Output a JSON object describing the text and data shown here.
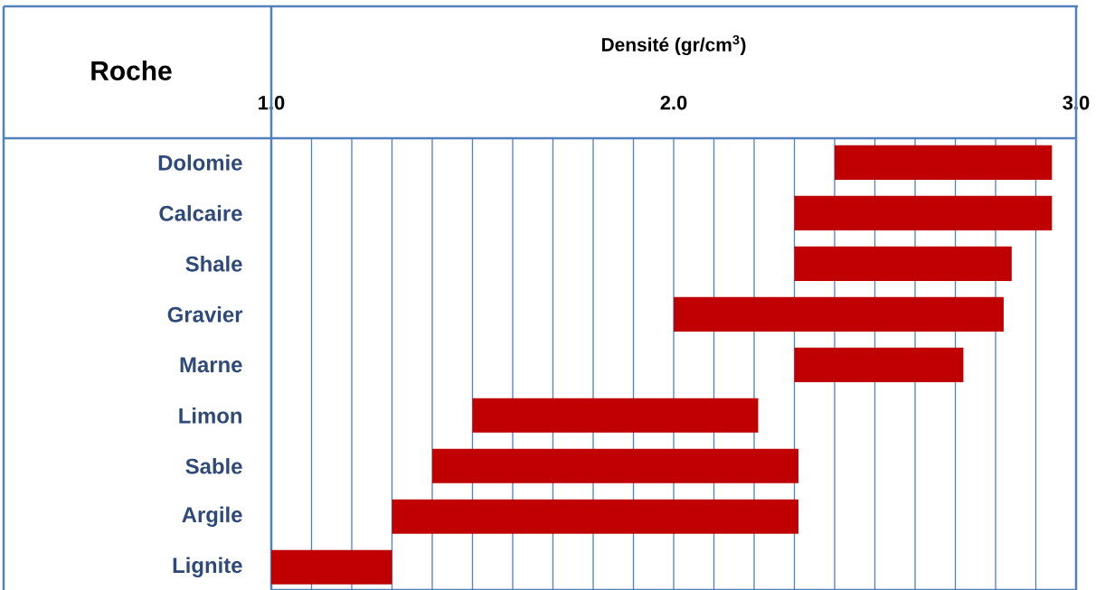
{
  "chart_data": {
    "type": "bar",
    "orientation": "horizontal",
    "xlabel": "Densité  (gr/cm$^{3}$)",
    "ylabel": "Roche",
    "categories": [
      "Dolomie",
      "Calcaire",
      "Shale",
      "Gravier",
      "Marne",
      "Limon",
      "Sable",
      "Argile",
      "Lignite"
    ],
    "base": [
      2.4,
      2.3,
      2.3,
      2.0,
      2.3,
      1.5,
      1.4,
      1.3,
      1.0
    ],
    "values": [
      0.54,
      0.64,
      0.54,
      0.82,
      0.42,
      0.71,
      0.91,
      1.01,
      0.3
    ],
    "color": "#c00000",
    "xlim": [
      1.0,
      3.0
    ],
    "xticks": [
      {
        "value": 1.0,
        "label": "1.0"
      },
      {
        "value": 1.1,
        "label": null
      },
      {
        "value": 1.2,
        "label": null
      },
      {
        "value": 1.3,
        "label": null
      },
      {
        "value": 1.4,
        "label": null
      },
      {
        "value": 1.5,
        "label": null
      },
      {
        "value": 1.6,
        "label": null
      },
      {
        "value": 1.7,
        "label": null
      },
      {
        "value": 1.8,
        "label": null
      },
      {
        "value": 1.9,
        "label": null
      },
      {
        "value": 2.0,
        "label": "2.0"
      },
      {
        "value": 2.1,
        "label": null
      },
      {
        "value": 2.2,
        "label": null
      },
      {
        "value": 2.3,
        "label": null
      },
      {
        "value": 2.4,
        "label": null
      },
      {
        "value": 2.5,
        "label": null
      },
      {
        "value": 2.6,
        "label": null
      },
      {
        "value": 2.7,
        "label": null
      },
      {
        "value": 2.8,
        "label": null
      },
      {
        "value": 2.9,
        "label": null
      },
      {
        "value": 3.0,
        "label": "3.0"
      }
    ],
    "grid": "x"
  }
}
